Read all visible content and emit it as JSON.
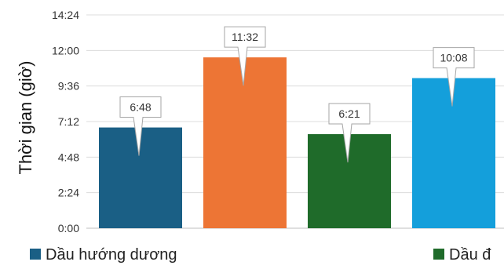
{
  "chart_data": {
    "type": "bar",
    "ylabel": "Thời gian (giờ)",
    "y_ticks": [
      "0:00",
      "2:24",
      "4:48",
      "7:12",
      "9:36",
      "12:00",
      "14:24"
    ],
    "ylim_hours": [
      0,
      14.4
    ],
    "grid": true,
    "bars": [
      {
        "value_hours": 6.8,
        "label": "6:48",
        "color": "#1a5f85"
      },
      {
        "value_hours": 11.533,
        "label": "11:32",
        "color": "#ed7535"
      },
      {
        "value_hours": 6.35,
        "label": "6:21",
        "color": "#1f6b2a"
      },
      {
        "value_hours": 10.133,
        "label": "10:08",
        "color": "#149fdb"
      }
    ],
    "legend": [
      {
        "label": "Dầu hướng dương",
        "color": "#1a5f85"
      },
      {
        "label": "Dầu đ",
        "color": "#1f6b2a"
      }
    ]
  }
}
